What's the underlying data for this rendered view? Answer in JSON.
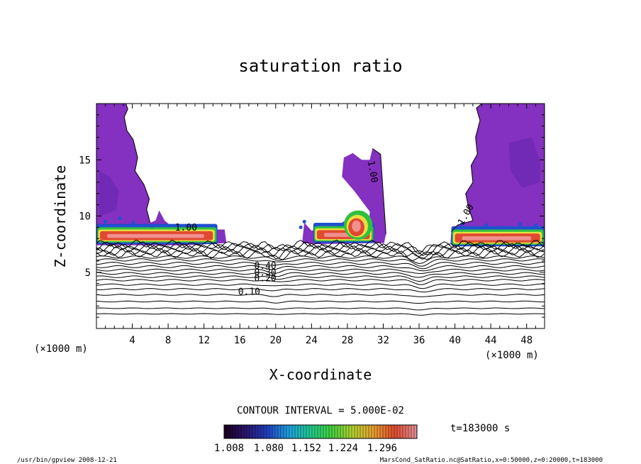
{
  "chart_data": {
    "type": "contour",
    "title": "saturation ratio",
    "xlabel": "X-coordinate",
    "ylabel": "Z-coordinate",
    "x_unit": "(×1000 m)",
    "z_unit": "(×1000 m)",
    "xlim": [
      0,
      50
    ],
    "ylim": [
      0,
      20
    ],
    "x_ticks": [
      4,
      8,
      12,
      16,
      20,
      24,
      28,
      32,
      36,
      40,
      44,
      48
    ],
    "y_ticks": [
      5,
      10,
      15
    ],
    "contour_interval_text": "CONTOUR INTERVAL = 5.000E-02",
    "time_text": "t=183000 s",
    "contour_labels": [
      "1.00",
      "1.00",
      "1.00",
      "0.40",
      "0.30",
      "0.20",
      "0.10"
    ],
    "colorbar": {
      "tick_labels": [
        "1.008",
        "1.080",
        "1.152",
        "1.224",
        "1.296"
      ],
      "colors": [
        "#1a0022",
        "#2a1670",
        "#2040c0",
        "#1fa0e0",
        "#20c890",
        "#40d040",
        "#b0d030",
        "#e8a030",
        "#e04a30",
        "#e08a90"
      ]
    },
    "regions": [
      {
        "name": "left-cloud",
        "x_range": [
          0,
          14.5
        ],
        "z_range": [
          7.2,
          20
        ],
        "color": "#8430c0"
      },
      {
        "name": "center-cloud",
        "x_range": [
          22,
          32
        ],
        "z_range": [
          7.5,
          16
        ],
        "color": "#8430c0"
      },
      {
        "name": "right-cloud",
        "x_range": [
          39,
          50
        ],
        "z_range": [
          7.5,
          20
        ],
        "color": "#8430c0"
      }
    ],
    "colors": {
      "cloud": "#8430c0",
      "cloud_dark": "#6a28b0",
      "band_red": "#e04a30",
      "band_pink": "#f09090",
      "band_yellow": "#e8e040",
      "band_green": "#30c040",
      "band_blue": "#2050d0"
    }
  },
  "footer": {
    "left": "/usr/bin/gpview  2008-12-21",
    "right": "MarsCond_SatRatio.nc@SatRatio,x=0:50000,z=0:20000,t=183000"
  }
}
